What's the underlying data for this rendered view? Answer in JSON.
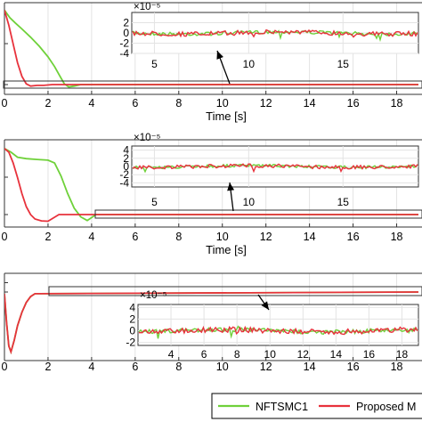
{
  "legend": {
    "entries": [
      {
        "label": "NFTSMC1",
        "color": "#6fd13a"
      },
      {
        "label": "Proposed M",
        "color": "#e8323c"
      }
    ]
  },
  "chart_data": [
    {
      "type": "line",
      "xlabel": "Time [s]",
      "xlim": [
        0,
        19
      ],
      "xticks": [
        "0",
        "2",
        "4",
        "6",
        "8",
        "10",
        "12",
        "14",
        "16",
        "18"
      ],
      "grid": true,
      "series": [
        {
          "name": "NFTSMC1",
          "color": "#6fd13a",
          "x": [
            0,
            0.25,
            0.5,
            0.8,
            1.2,
            1.6,
            2.0,
            2.3,
            2.55,
            2.75,
            2.95,
            3.2,
            3.5,
            3.8,
            4.0,
            19
          ],
          "y": [
            1.0,
            0.9,
            0.83,
            0.75,
            0.64,
            0.52,
            0.38,
            0.25,
            0.12,
            0.02,
            -0.02,
            -0.01,
            0.0,
            0.0,
            0.0,
            0.0
          ]
        },
        {
          "name": "Proposed M",
          "color": "#e8323c",
          "x": [
            0,
            0.2,
            0.4,
            0.6,
            0.8,
            1.0,
            1.2,
            1.5,
            1.8,
            2.2,
            3.0,
            19
          ],
          "y": [
            1.0,
            0.8,
            0.55,
            0.3,
            0.12,
            0.02,
            -0.01,
            0.0,
            0.0,
            0.0,
            0.0,
            0.0
          ]
        }
      ],
      "inset": {
        "xlim": [
          3.8,
          19
        ],
        "ylim": [
          -4,
          4
        ],
        "exponent": "×10⁻⁵",
        "xticks": [
          "5",
          "10",
          "15"
        ],
        "yticks": [
          "2",
          "0",
          "-2",
          "-4"
        ]
      }
    },
    {
      "type": "line",
      "xlabel": "Time [s]",
      "xlim": [
        0,
        19
      ],
      "xticks": [
        "0",
        "2",
        "4",
        "6",
        "8",
        "10",
        "12",
        "14",
        "16",
        "18"
      ],
      "grid": true,
      "series": [
        {
          "name": "NFTSMC1",
          "color": "#6fd13a",
          "x": [
            0,
            0.3,
            0.6,
            1.0,
            1.5,
            2.0,
            2.3,
            2.6,
            2.9,
            3.2,
            3.5,
            3.8,
            4.2,
            19
          ],
          "y": [
            1.0,
            0.95,
            0.88,
            0.86,
            0.85,
            0.84,
            0.8,
            0.62,
            0.38,
            0.18,
            0.06,
            0.01,
            0.0,
            0.0
          ]
        },
        {
          "name": "Proposed M",
          "color": "#e8323c",
          "x": [
            0,
            0.2,
            0.4,
            0.6,
            0.8,
            1.0,
            1.2,
            1.4,
            1.7,
            2.0,
            2.5,
            19
          ],
          "y": [
            1.0,
            0.95,
            0.8,
            0.6,
            0.38,
            0.2,
            0.09,
            0.03,
            0.005,
            0.0,
            0.0,
            0.0
          ]
        }
      ],
      "inset": {
        "xlim": [
          3.8,
          19
        ],
        "ylim": [
          -5,
          5
        ],
        "exponent": "×10⁻⁵",
        "xticks": [
          "5",
          "10",
          "15"
        ],
        "yticks": [
          "4",
          "2",
          "0",
          "-2",
          "-4"
        ]
      }
    },
    {
      "type": "line",
      "xlabel": "",
      "xlim": [
        0,
        19
      ],
      "xticks": [
        "0",
        "2",
        "4",
        "6",
        "8",
        "10",
        "12",
        "14",
        "16",
        "18"
      ],
      "grid": true,
      "series": [
        {
          "name": "NFTSMC1",
          "color": "#6fd13a",
          "x": [
            0,
            0.1,
            0.2,
            0.3,
            0.45,
            0.6,
            0.8,
            1.0,
            1.2,
            1.4,
            1.6,
            19
          ],
          "y": [
            0.0,
            -0.5,
            -0.9,
            -1.0,
            -0.8,
            -0.55,
            -0.32,
            -0.15,
            -0.05,
            0.0,
            0.0,
            0.0
          ]
        },
        {
          "name": "Proposed M",
          "color": "#e8323c",
          "x": [
            0,
            0.1,
            0.2,
            0.3,
            0.45,
            0.6,
            0.8,
            1.0,
            1.2,
            1.4,
            1.6,
            19
          ],
          "y": [
            0.0,
            -0.5,
            -0.9,
            -1.0,
            -0.8,
            -0.55,
            -0.32,
            -0.15,
            -0.05,
            0.0,
            0.0,
            0.0
          ]
        }
      ],
      "inset": {
        "xlim": [
          2,
          19
        ],
        "ylim": [
          -2.5,
          4.5
        ],
        "exponent": "×10⁻⁵",
        "xticks": [
          "4",
          "6",
          "8",
          "10",
          "12",
          "14",
          "16",
          "18"
        ],
        "yticks": [
          "4",
          "2",
          "0",
          "-2"
        ]
      }
    }
  ]
}
